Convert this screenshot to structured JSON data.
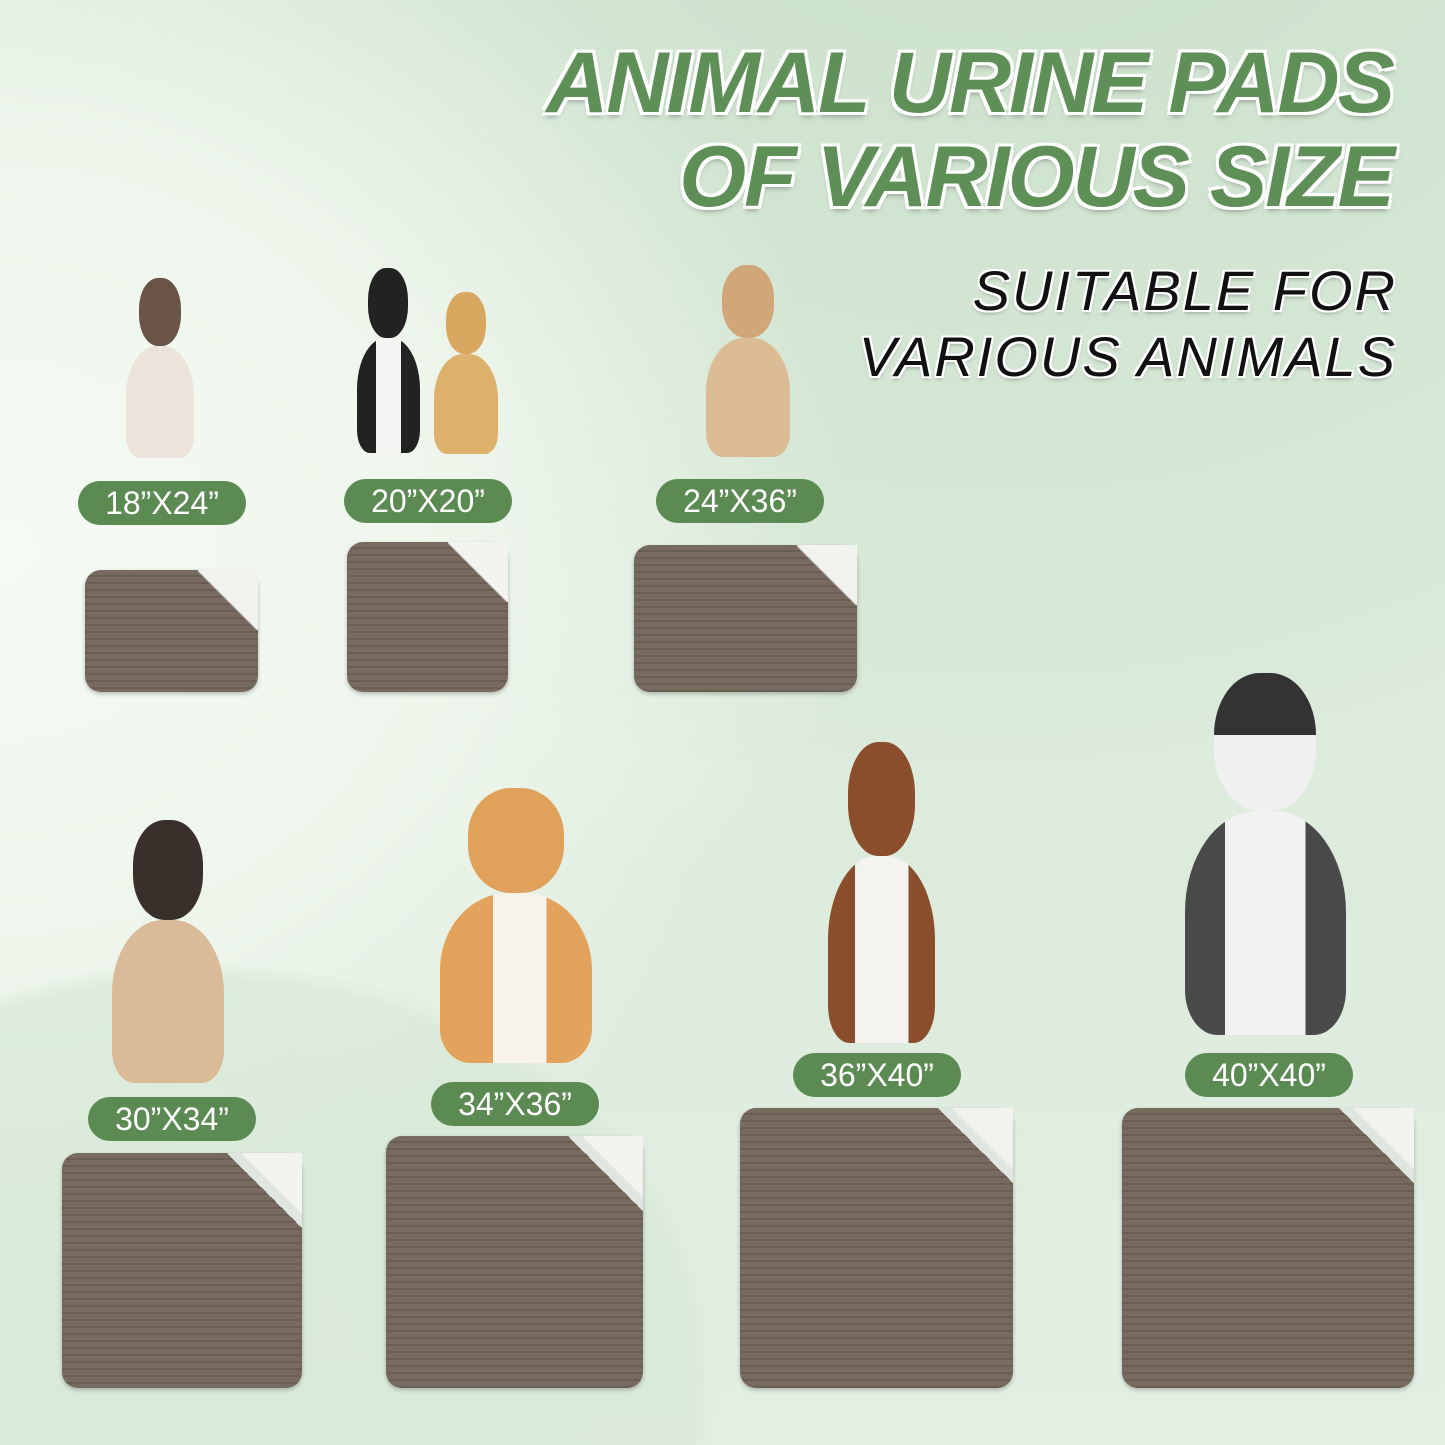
{
  "header": {
    "title_lines": [
      "ANIMAL URINE PADS",
      "OF VARIOUS SIZE"
    ],
    "subtitle_lines": [
      "SUITABLE FOR",
      "VARIOUS ANIMALS"
    ]
  },
  "colors": {
    "accent": "#5b8b53",
    "pad": "#776a5f",
    "background": "#e2efe1"
  },
  "products": [
    {
      "size": "18”X24”",
      "animal": "siamese-cat"
    },
    {
      "size": "20”X20”",
      "animal": "cat-and-puppy"
    },
    {
      "size": "24”X36”",
      "animal": "labrador-mix"
    },
    {
      "size": "30”X34”",
      "animal": "pug"
    },
    {
      "size": "34”X36”",
      "animal": "corgi"
    },
    {
      "size": "36”X40”",
      "animal": "australian-shepherd"
    },
    {
      "size": "40”X40”",
      "animal": "husky"
    }
  ]
}
